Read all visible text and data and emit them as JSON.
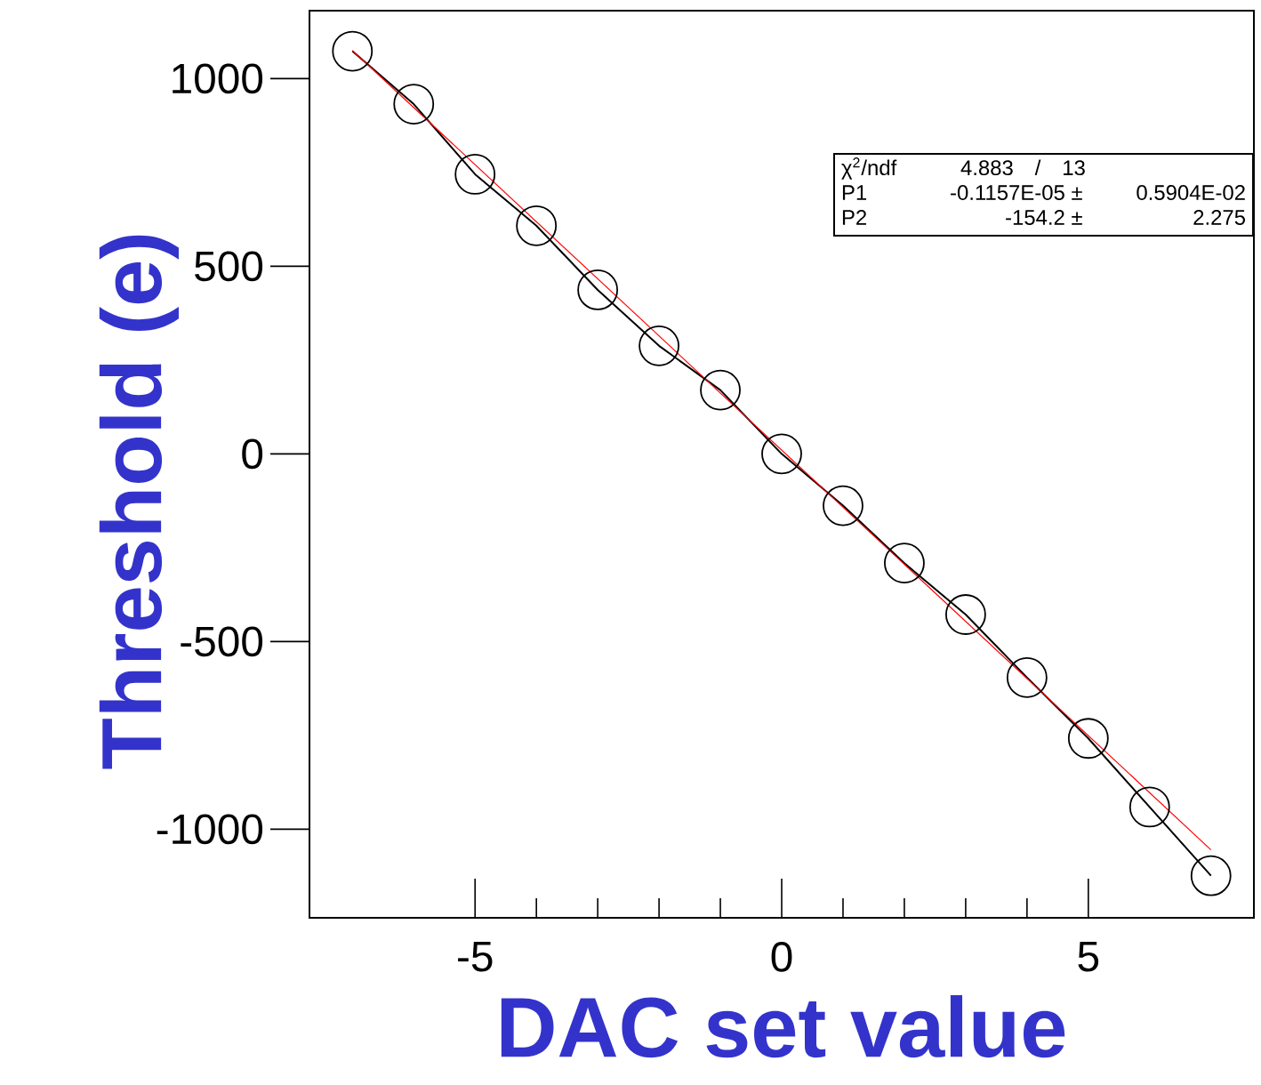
{
  "chart_data": {
    "type": "line",
    "xlabel": "DAC set value",
    "ylabel": "Threshold (e)",
    "x": [
      -7,
      -6,
      -5,
      -4,
      -3,
      -2,
      -1,
      0,
      1,
      2,
      3,
      4,
      5,
      6,
      7
    ],
    "series": [
      {
        "color": "#000000",
        "marker": "circle",
        "values": [
          1073,
          932,
          745,
          608,
          437,
          288,
          170,
          0,
          -138,
          -291,
          -428,
          -596,
          -758,
          -941,
          -1124
        ]
      },
      {
        "type": "line",
        "color": "#ff0000",
        "marker": "none",
        "x": [
          -7,
          7
        ],
        "values": [
          1075,
          -1055
        ]
      }
    ],
    "xlim": [
      -7.7,
      7.7
    ],
    "ylim": [
      -1236,
      1181
    ],
    "xticks": [
      -5,
      0,
      5
    ],
    "yticks": [
      {
        "value": -1000,
        "label": "-1000"
      },
      -500,
      0,
      500,
      1000
    ],
    "annotations": [
      "χ$^{2}$/ndf",
      "4.883",
      "/",
      "13",
      "P1",
      "-0.1157E-05 ±",
      "0.5904E-02",
      "P2",
      "-154.2 ±",
      "2.275"
    ]
  }
}
